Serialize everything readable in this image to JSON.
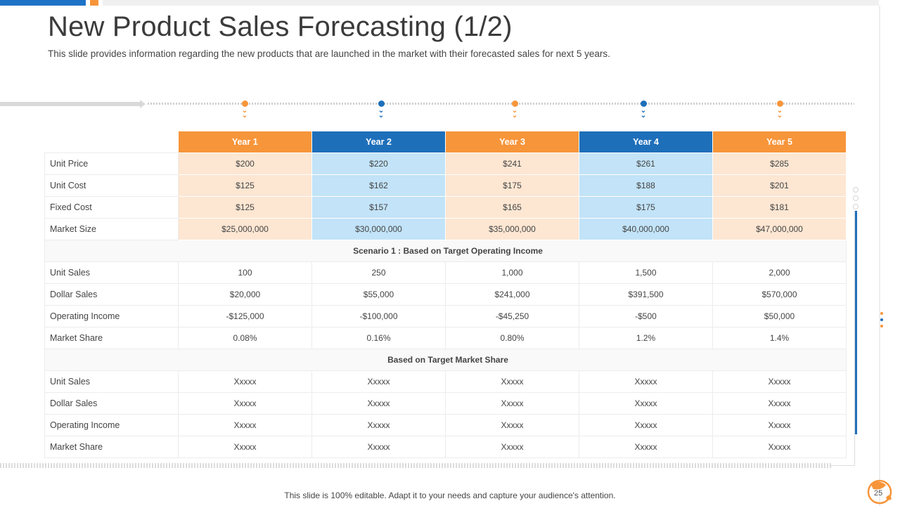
{
  "header": {
    "title": "New Product Sales Forecasting (1/2)",
    "subtitle": "This slide provides information regarding the new products that are launched in the market with their forecasted sales for next 5 years."
  },
  "colors": {
    "orange": "#f7953a",
    "blue": "#1e6fba",
    "light_orange": "#fde6d2",
    "light_blue": "#c2e3f8"
  },
  "table": {
    "years": [
      "Year 1",
      "Year 2",
      "Year 3",
      "Year 4",
      "Year 5"
    ],
    "base_rows": [
      {
        "label": "Unit Price",
        "values": [
          "$200",
          "$220",
          "$241",
          "$261",
          "$285"
        ]
      },
      {
        "label": "Unit Cost",
        "values": [
          "$125",
          "$162",
          "$175",
          "$188",
          "$201"
        ]
      },
      {
        "label": "Fixed Cost",
        "values": [
          "$125",
          "$157",
          "$165",
          "$175",
          "$181"
        ]
      },
      {
        "label": "Market Size",
        "values": [
          "$25,000,000",
          "$30,000,000",
          "$35,000,000",
          "$40,000,000",
          "$47,000,000"
        ]
      }
    ],
    "scenario1": {
      "heading": "Scenario 1 : Based on Target Operating Income",
      "rows": [
        {
          "label": "Unit Sales",
          "values": [
            "100",
            "250",
            "1,000",
            "1,500",
            "2,000"
          ]
        },
        {
          "label": "Dollar Sales",
          "values": [
            "$20,000",
            "$55,000",
            "$241,000",
            "$391,500",
            "$570,000"
          ]
        },
        {
          "label": "Operating Income",
          "values": [
            "-$125,000",
            "-$100,000",
            "-$45,250",
            "-$500",
            "$50,000"
          ]
        },
        {
          "label": "Market Share",
          "values": [
            "0.08%",
            "0.16%",
            "0.80%",
            "1.2%",
            "1.4%"
          ]
        }
      ]
    },
    "scenario2": {
      "heading": "Based on Target Market Share",
      "rows": [
        {
          "label": "Unit Sales",
          "values": [
            "Xxxxx",
            "Xxxxx",
            "Xxxxx",
            "Xxxxx",
            "Xxxxx"
          ]
        },
        {
          "label": "Dollar Sales",
          "values": [
            "Xxxxx",
            "Xxxxx",
            "Xxxxx",
            "Xxxxx",
            "Xxxxx"
          ]
        },
        {
          "label": "Operating Income",
          "values": [
            "Xxxxx",
            "Xxxxx",
            "Xxxxx",
            "Xxxxx",
            "Xxxxx"
          ]
        },
        {
          "label": "Market Share",
          "values": [
            "Xxxxx",
            "Xxxxx",
            "Xxxxx",
            "Xxxxx",
            "Xxxxx"
          ]
        }
      ]
    }
  },
  "footer": {
    "note": "This slide is 100% editable. Adapt it to your needs and capture your audience's attention.",
    "page": "25"
  },
  "icons": {
    "timeline_marker": "chevron-down-icon",
    "logo": "leaf-logo-icon"
  }
}
